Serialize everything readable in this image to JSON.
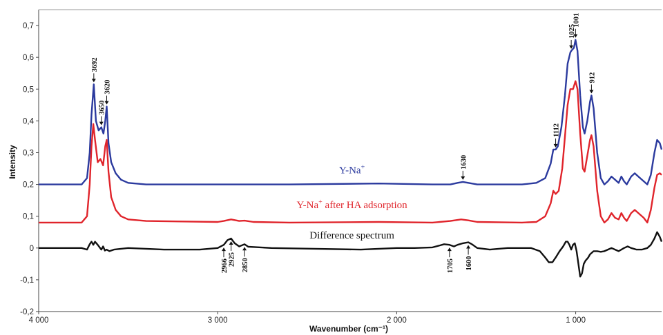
{
  "chart_data": {
    "type": "line",
    "xlabel": "Wavenumber (cm⁻¹)",
    "ylabel": "Intensity",
    "xlim": [
      4000,
      520
    ],
    "ylim": [
      -0.2,
      0.75
    ],
    "x_reversed": true,
    "grid": false,
    "x_ticks": [
      {
        "value": 4000,
        "label": "4 000"
      },
      {
        "value": 3000,
        "label": "3 000"
      },
      {
        "value": 2000,
        "label": "2 000"
      },
      {
        "value": 1000,
        "label": "1 000"
      }
    ],
    "y_ticks": [
      {
        "value": -0.2,
        "label": "-0,2"
      },
      {
        "value": -0.1,
        "label": "-0,1"
      },
      {
        "value": 0,
        "label": "0"
      },
      {
        "value": 0.1,
        "label": "0,1"
      },
      {
        "value": 0.2,
        "label": "0,2"
      },
      {
        "value": 0.3,
        "label": "0,3"
      },
      {
        "value": 0.4,
        "label": "0,4"
      },
      {
        "value": 0.5,
        "label": "0,5"
      },
      {
        "value": 0.6,
        "label": "0,6"
      },
      {
        "value": 0.7,
        "label": "0,7"
      }
    ],
    "series": [
      {
        "name": "Y-Na",
        "name_superscript": "+",
        "name_suffix": "",
        "color": "#2b3a9e",
        "points": [
          [
            4000,
            0.2
          ],
          [
            3760,
            0.2
          ],
          [
            3730,
            0.22
          ],
          [
            3715,
            0.3
          ],
          [
            3705,
            0.42
          ],
          [
            3692,
            0.515
          ],
          [
            3680,
            0.4
          ],
          [
            3665,
            0.37
          ],
          [
            3650,
            0.38
          ],
          [
            3638,
            0.36
          ],
          [
            3628,
            0.4
          ],
          [
            3620,
            0.445
          ],
          [
            3610,
            0.33
          ],
          [
            3595,
            0.27
          ],
          [
            3570,
            0.235
          ],
          [
            3540,
            0.215
          ],
          [
            3500,
            0.205
          ],
          [
            3400,
            0.2
          ],
          [
            3000,
            0.2
          ],
          [
            2600,
            0.2
          ],
          [
            2100,
            0.203
          ],
          [
            1800,
            0.2
          ],
          [
            1700,
            0.2
          ],
          [
            1660,
            0.205
          ],
          [
            1630,
            0.208
          ],
          [
            1600,
            0.205
          ],
          [
            1550,
            0.2
          ],
          [
            1300,
            0.2
          ],
          [
            1220,
            0.205
          ],
          [
            1170,
            0.22
          ],
          [
            1140,
            0.265
          ],
          [
            1125,
            0.31
          ],
          [
            1112,
            0.31
          ],
          [
            1100,
            0.32
          ],
          [
            1080,
            0.38
          ],
          [
            1060,
            0.48
          ],
          [
            1045,
            0.58
          ],
          [
            1030,
            0.615
          ],
          [
            1025,
            0.62
          ],
          [
            1010,
            0.63
          ],
          [
            1001,
            0.655
          ],
          [
            990,
            0.62
          ],
          [
            975,
            0.48
          ],
          [
            960,
            0.38
          ],
          [
            950,
            0.36
          ],
          [
            935,
            0.4
          ],
          [
            920,
            0.46
          ],
          [
            912,
            0.48
          ],
          [
            900,
            0.44
          ],
          [
            880,
            0.3
          ],
          [
            860,
            0.22
          ],
          [
            840,
            0.2
          ],
          [
            820,
            0.21
          ],
          [
            800,
            0.225
          ],
          [
            780,
            0.215
          ],
          [
            760,
            0.205
          ],
          [
            745,
            0.225
          ],
          [
            730,
            0.21
          ],
          [
            715,
            0.2
          ],
          [
            690,
            0.225
          ],
          [
            670,
            0.235
          ],
          [
            650,
            0.225
          ],
          [
            620,
            0.21
          ],
          [
            600,
            0.2
          ],
          [
            580,
            0.23
          ],
          [
            560,
            0.3
          ],
          [
            545,
            0.34
          ],
          [
            530,
            0.33
          ],
          [
            520,
            0.31
          ]
        ]
      },
      {
        "name": "Y-Na",
        "name_superscript": "+",
        "name_suffix": " after HA adsorption",
        "color": "#e0242b",
        "points": [
          [
            4000,
            0.08
          ],
          [
            3760,
            0.08
          ],
          [
            3730,
            0.1
          ],
          [
            3715,
            0.2
          ],
          [
            3705,
            0.32
          ],
          [
            3695,
            0.39
          ],
          [
            3685,
            0.34
          ],
          [
            3670,
            0.27
          ],
          [
            3655,
            0.28
          ],
          [
            3640,
            0.26
          ],
          [
            3628,
            0.32
          ],
          [
            3620,
            0.34
          ],
          [
            3610,
            0.24
          ],
          [
            3595,
            0.16
          ],
          [
            3570,
            0.12
          ],
          [
            3540,
            0.1
          ],
          [
            3500,
            0.09
          ],
          [
            3400,
            0.085
          ],
          [
            3000,
            0.082
          ],
          [
            2966,
            0.085
          ],
          [
            2925,
            0.09
          ],
          [
            2880,
            0.085
          ],
          [
            2850,
            0.086
          ],
          [
            2800,
            0.082
          ],
          [
            2600,
            0.08
          ],
          [
            2100,
            0.082
          ],
          [
            1800,
            0.08
          ],
          [
            1700,
            0.085
          ],
          [
            1640,
            0.09
          ],
          [
            1600,
            0.087
          ],
          [
            1550,
            0.082
          ],
          [
            1300,
            0.08
          ],
          [
            1220,
            0.082
          ],
          [
            1170,
            0.1
          ],
          [
            1140,
            0.14
          ],
          [
            1125,
            0.18
          ],
          [
            1112,
            0.17
          ],
          [
            1095,
            0.18
          ],
          [
            1075,
            0.25
          ],
          [
            1060,
            0.35
          ],
          [
            1045,
            0.45
          ],
          [
            1030,
            0.5
          ],
          [
            1015,
            0.5
          ],
          [
            1001,
            0.525
          ],
          [
            990,
            0.5
          ],
          [
            975,
            0.36
          ],
          [
            960,
            0.25
          ],
          [
            950,
            0.24
          ],
          [
            935,
            0.29
          ],
          [
            920,
            0.34
          ],
          [
            912,
            0.355
          ],
          [
            900,
            0.32
          ],
          [
            880,
            0.18
          ],
          [
            860,
            0.1
          ],
          [
            840,
            0.08
          ],
          [
            820,
            0.09
          ],
          [
            800,
            0.11
          ],
          [
            780,
            0.095
          ],
          [
            760,
            0.09
          ],
          [
            745,
            0.11
          ],
          [
            730,
            0.095
          ],
          [
            715,
            0.085
          ],
          [
            690,
            0.11
          ],
          [
            670,
            0.12
          ],
          [
            650,
            0.11
          ],
          [
            620,
            0.095
          ],
          [
            600,
            0.08
          ],
          [
            580,
            0.12
          ],
          [
            560,
            0.19
          ],
          [
            545,
            0.23
          ],
          [
            530,
            0.235
          ],
          [
            520,
            0.23
          ]
        ]
      },
      {
        "name": "Difference spectrum",
        "name_superscript": "",
        "name_suffix": "",
        "color": "#111111",
        "points": [
          [
            4000,
            0.0
          ],
          [
            3760,
            0.0
          ],
          [
            3730,
            -0.005
          ],
          [
            3715,
            0.012
          ],
          [
            3705,
            0.02
          ],
          [
            3695,
            0.01
          ],
          [
            3685,
            0.02
          ],
          [
            3670,
            0.01
          ],
          [
            3650,
            -0.005
          ],
          [
            3640,
            0.005
          ],
          [
            3630,
            -0.008
          ],
          [
            3620,
            -0.005
          ],
          [
            3605,
            -0.01
          ],
          [
            3580,
            -0.005
          ],
          [
            3500,
            0.0
          ],
          [
            3300,
            -0.005
          ],
          [
            3100,
            -0.005
          ],
          [
            3000,
            0.0
          ],
          [
            2966,
            0.01
          ],
          [
            2945,
            0.025
          ],
          [
            2925,
            0.03
          ],
          [
            2905,
            0.015
          ],
          [
            2880,
            0.005
          ],
          [
            2850,
            0.012
          ],
          [
            2830,
            0.004
          ],
          [
            2700,
            0.0
          ],
          [
            2400,
            -0.003
          ],
          [
            2200,
            -0.005
          ],
          [
            2000,
            0.0
          ],
          [
            1900,
            0.0
          ],
          [
            1800,
            0.002
          ],
          [
            1760,
            0.008
          ],
          [
            1735,
            0.012
          ],
          [
            1705,
            0.01
          ],
          [
            1680,
            0.005
          ],
          [
            1660,
            0.01
          ],
          [
            1630,
            0.015
          ],
          [
            1600,
            0.018
          ],
          [
            1580,
            0.012
          ],
          [
            1550,
            0.0
          ],
          [
            1480,
            -0.005
          ],
          [
            1380,
            0.0
          ],
          [
            1250,
            0.0
          ],
          [
            1200,
            -0.01
          ],
          [
            1170,
            -0.03
          ],
          [
            1150,
            -0.045
          ],
          [
            1130,
            -0.045
          ],
          [
            1112,
            -0.03
          ],
          [
            1090,
            -0.01
          ],
          [
            1070,
            0.005
          ],
          [
            1055,
            0.02
          ],
          [
            1045,
            0.02
          ],
          [
            1035,
            0.01
          ],
          [
            1025,
            -0.005
          ],
          [
            1015,
            0.01
          ],
          [
            1005,
            0.015
          ],
          [
            995,
            -0.01
          ],
          [
            985,
            -0.05
          ],
          [
            975,
            -0.09
          ],
          [
            965,
            -0.08
          ],
          [
            955,
            -0.05
          ],
          [
            945,
            -0.04
          ],
          [
            930,
            -0.03
          ],
          [
            920,
            -0.02
          ],
          [
            900,
            -0.01
          ],
          [
            880,
            -0.01
          ],
          [
            860,
            -0.012
          ],
          [
            840,
            -0.01
          ],
          [
            820,
            -0.005
          ],
          [
            800,
            0.0
          ],
          [
            780,
            -0.005
          ],
          [
            760,
            -0.01
          ],
          [
            730,
            0.0
          ],
          [
            710,
            0.005
          ],
          [
            690,
            0.0
          ],
          [
            660,
            -0.005
          ],
          [
            630,
            -0.005
          ],
          [
            600,
            0.0
          ],
          [
            580,
            0.01
          ],
          [
            560,
            0.03
          ],
          [
            545,
            0.05
          ],
          [
            530,
            0.035
          ],
          [
            520,
            0.02
          ]
        ]
      }
    ],
    "annotations": [
      {
        "label": "3692",
        "x": 3692,
        "y": 0.515,
        "side": "top",
        "color": "#111111"
      },
      {
        "label": "3650",
        "x": 3650,
        "y": 0.38,
        "side": "top",
        "color": "#111111"
      },
      {
        "label": "3620",
        "x": 3620,
        "y": 0.445,
        "side": "top",
        "color": "#111111"
      },
      {
        "label": "1630",
        "x": 1630,
        "y": 0.208,
        "side": "top",
        "color": "#111111"
      },
      {
        "label": "1112",
        "x": 1112,
        "y": 0.31,
        "side": "top",
        "color": "#111111"
      },
      {
        "label": "1025",
        "x": 1025,
        "y": 0.62,
        "side": "top",
        "color": "#111111"
      },
      {
        "label": "1001",
        "x": 1001,
        "y": 0.655,
        "side": "top",
        "color": "#111111"
      },
      {
        "label": "912",
        "x": 912,
        "y": 0.48,
        "side": "top",
        "color": "#111111"
      },
      {
        "label": "2966",
        "x": 2966,
        "y": 0.01,
        "side": "bottom",
        "color": "#111111"
      },
      {
        "label": "2925",
        "x": 2925,
        "y": 0.03,
        "side": "bottom",
        "color": "#111111"
      },
      {
        "label": "2850",
        "x": 2850,
        "y": 0.012,
        "side": "bottom",
        "color": "#111111"
      },
      {
        "label": "1705",
        "x": 1705,
        "y": 0.01,
        "side": "bottom",
        "color": "#111111"
      },
      {
        "label": "1600",
        "x": 1600,
        "y": 0.018,
        "side": "bottom",
        "color": "#111111"
      }
    ]
  }
}
